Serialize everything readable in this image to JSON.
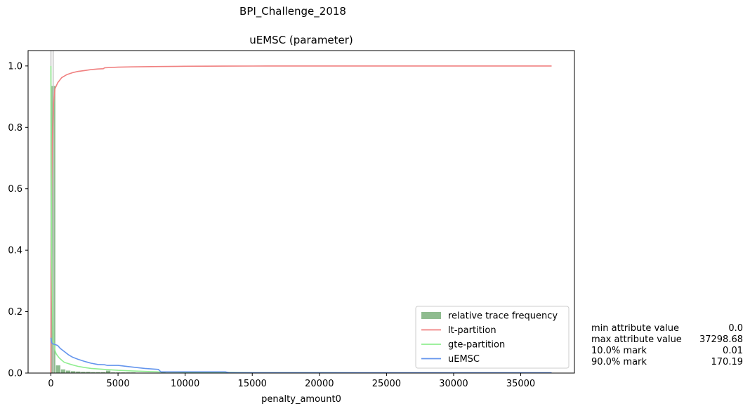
{
  "figure": {
    "suptitle": "BPI_Challenge_2018"
  },
  "stats": [
    {
      "label": "min attribute value",
      "value": "0.0"
    },
    {
      "label": "max attribute value",
      "value": "37298.68"
    },
    {
      "label": "10.0% mark",
      "value": "0.01"
    },
    {
      "label": "90.0% mark",
      "value": "170.19"
    }
  ],
  "chart_data": {
    "type": "bar",
    "title": "uEMSC (parameter)",
    "xlabel": "penalty_amount0",
    "ylabel": "",
    "xlim": [
      -1700,
      39000
    ],
    "ylim": [
      0,
      1.05
    ],
    "xticks": [
      0,
      5000,
      10000,
      15000,
      20000,
      25000,
      30000,
      35000
    ],
    "yticks": [
      0.0,
      0.2,
      0.4,
      0.6,
      0.8,
      1.0
    ],
    "grid": false,
    "legend_position": "lower-right",
    "colors": {
      "histogram": "#8fbc8f",
      "lt": "#f08080",
      "gte": "#90ee90",
      "uemsc": "#6495ed",
      "marker": "#c8c8c8"
    },
    "marker_lines_x": [
      0.01,
      170.19
    ],
    "histogram": {
      "name": "relative trace frequency",
      "bin_width": 373,
      "bin_starts": [
        0,
        373,
        746,
        1119,
        1492,
        1865,
        2238,
        2611,
        2984,
        3357,
        3730,
        4103,
        4476,
        4849,
        5222,
        5595,
        5968,
        6341,
        6714,
        7087,
        7460,
        7833,
        8206,
        8579,
        8952,
        9325,
        9698,
        10071,
        10444,
        10817,
        11190,
        11563,
        11936,
        12309,
        12682,
        13055
      ],
      "values": [
        0.935,
        0.025,
        0.012,
        0.008,
        0.006,
        0.005,
        0.004,
        0.004,
        0.003,
        0.003,
        0.003,
        0.008,
        0.002,
        0.002,
        0.002,
        0.002,
        0.002,
        0.001,
        0.001,
        0.001,
        0.001,
        0.001,
        0.003,
        0.001,
        0.001,
        0.001,
        0.001,
        0.001,
        0.001,
        0.001,
        0.001,
        0.001,
        0.001,
        0.001,
        0.001,
        0.002
      ]
    },
    "series": [
      {
        "name": "lt-partition",
        "x": [
          0,
          20,
          50,
          100,
          200,
          300,
          500,
          800,
          1200,
          1600,
          2000,
          2500,
          3000,
          3500,
          3900,
          4000,
          5000,
          6000,
          8000,
          10000,
          13000,
          15000,
          20000,
          25000,
          30000,
          35000,
          37300
        ],
        "y": [
          0.0,
          0.3,
          0.6,
          0.75,
          0.88,
          0.925,
          0.945,
          0.962,
          0.972,
          0.978,
          0.982,
          0.985,
          0.988,
          0.99,
          0.991,
          0.994,
          0.996,
          0.997,
          0.998,
          0.999,
          0.9995,
          0.9997,
          0.9999,
          1.0,
          1.0,
          1.0,
          1.0
        ]
      },
      {
        "name": "gte-partition",
        "x": [
          0,
          20,
          50,
          100,
          150,
          200,
          300,
          400,
          600,
          800,
          1000,
          1500,
          2000,
          2500,
          3000,
          4000,
          5000,
          6000,
          8000,
          10000,
          13000,
          15000,
          20000,
          25000,
          30000,
          35000,
          37300
        ],
        "y": [
          1.0,
          0.7,
          0.4,
          0.25,
          0.14,
          0.1,
          0.075,
          0.062,
          0.05,
          0.042,
          0.035,
          0.028,
          0.022,
          0.018,
          0.015,
          0.012,
          0.009,
          0.007,
          0.004,
          0.003,
          0.002,
          0.001,
          0.001,
          0.0,
          0.0,
          0.0,
          0.0
        ]
      },
      {
        "name": "uEMSC",
        "x": [
          0,
          50,
          100,
          200,
          300,
          500,
          700,
          1000,
          1300,
          1600,
          2000,
          2500,
          3000,
          3500,
          4000,
          4200,
          5000,
          6000,
          7000,
          8000,
          8200,
          10000,
          13000,
          13300,
          15000,
          20000,
          25000,
          30000,
          35000,
          37300
        ],
        "y": [
          0.115,
          0.1,
          0.096,
          0.094,
          0.093,
          0.09,
          0.08,
          0.07,
          0.06,
          0.052,
          0.045,
          0.038,
          0.032,
          0.028,
          0.027,
          0.025,
          0.025,
          0.02,
          0.015,
          0.012,
          0.004,
          0.004,
          0.004,
          0.001,
          0.001,
          0.001,
          0.001,
          0.001,
          0.001,
          0.001
        ]
      }
    ]
  }
}
